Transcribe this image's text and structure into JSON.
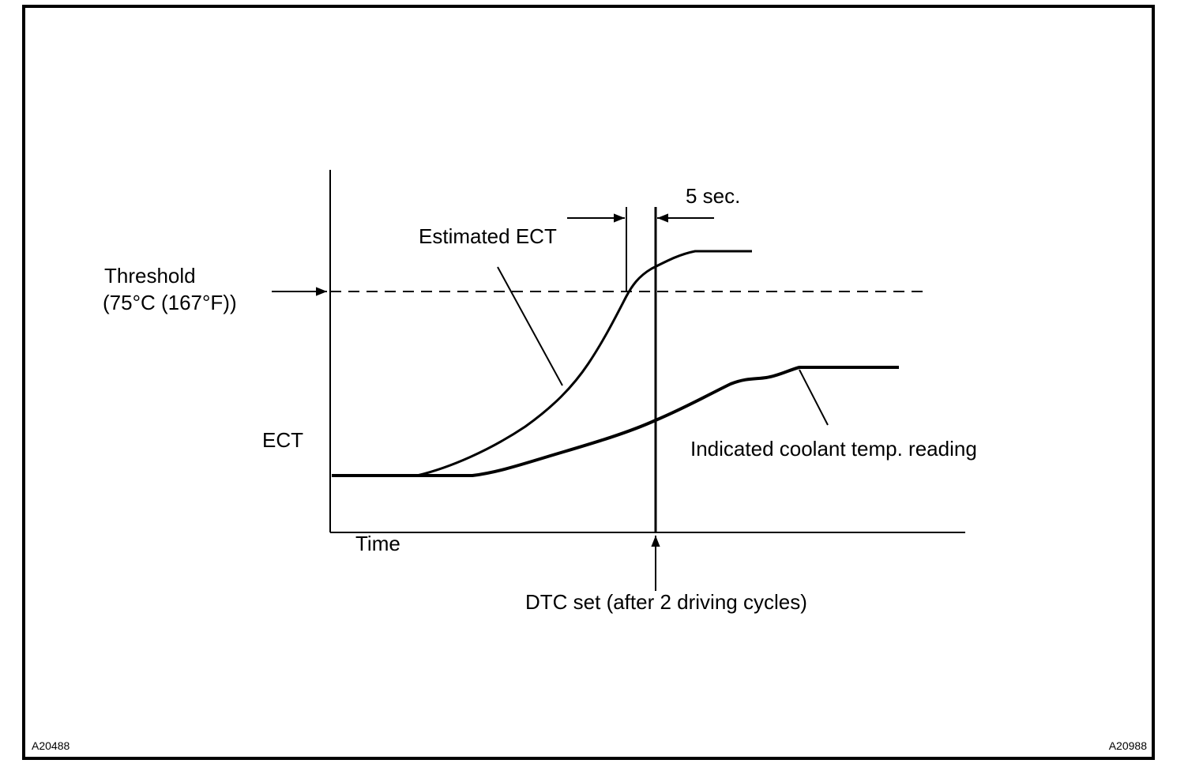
{
  "labels": {
    "threshold_line1": "Threshold",
    "threshold_line2": "(75°C (167°F))",
    "estimated_ect": "Estimated ECT",
    "five_sec": "5 sec.",
    "y_axis": "ECT",
    "x_axis": "Time",
    "indicated_reading": "Indicated coolant temp. reading",
    "dtc_set": "DTC set (after 2 driving cycles)"
  },
  "figure_codes": {
    "left": "A20488",
    "right": "A20988"
  }
}
